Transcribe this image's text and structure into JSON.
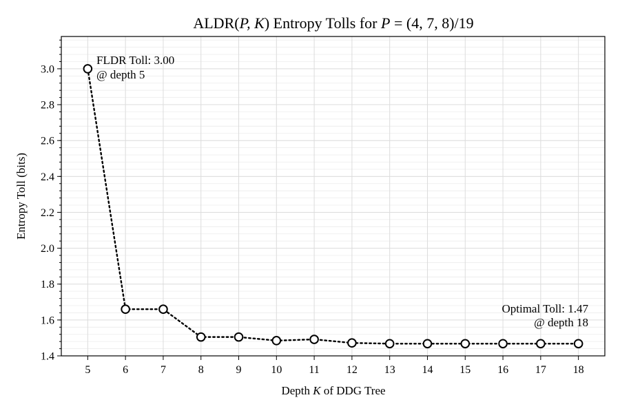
{
  "chart_data": {
    "type": "line",
    "title_prefix": "ALDR(",
    "title_pk": "P, K",
    "title_mid": ") Entropy Tolls for ",
    "title_p": "P",
    "title_eq": " = (4, 7, 8)/19",
    "xlabel_prefix": "Depth ",
    "xlabel_var": "K",
    "xlabel_suffix": " of DDG Tree",
    "ylabel": "Entropy Toll (bits)",
    "x": [
      5,
      6,
      7,
      8,
      9,
      10,
      11,
      12,
      13,
      14,
      15,
      16,
      17,
      18
    ],
    "y": [
      3.0,
      1.66,
      1.66,
      1.505,
      1.505,
      1.485,
      1.492,
      1.472,
      1.468,
      1.468,
      1.468,
      1.468,
      1.468,
      1.468
    ],
    "xticks": [
      "5",
      "6",
      "7",
      "8",
      "9",
      "10",
      "11",
      "12",
      "13",
      "14",
      "15",
      "16",
      "17",
      "18"
    ],
    "yticks": [
      "1.4",
      "1.6",
      "1.8",
      "2.0",
      "2.2",
      "2.4",
      "2.6",
      "2.8",
      "3.0"
    ],
    "xlim": [
      4.3,
      18.7
    ],
    "ylim": [
      1.4,
      3.18
    ],
    "grid": true,
    "marker": "open-circle",
    "line_style": "dotted",
    "annotations": {
      "fldr_line1": "FLDR Toll: 3.00",
      "fldr_line2": "@ depth 5",
      "optimal_line1": "Optimal Toll: 1.47",
      "optimal_line2": "@ depth 18"
    }
  }
}
